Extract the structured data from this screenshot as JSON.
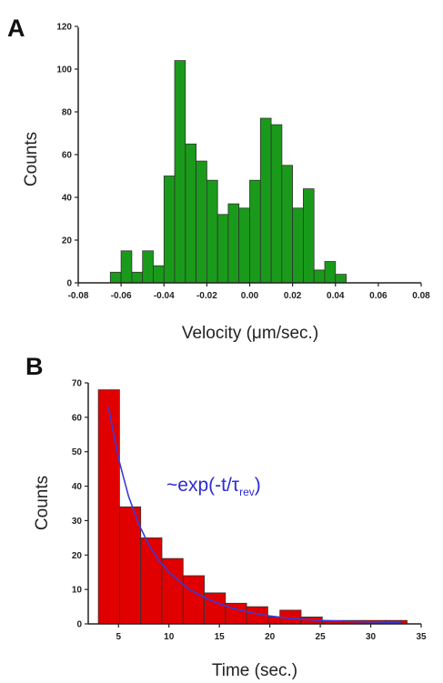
{
  "chart_data": [
    {
      "type": "bar",
      "panel_label": "A",
      "xlabel": "Velocity (μm/sec.)",
      "ylabel": "Counts",
      "xlim": [
        -0.08,
        0.08
      ],
      "ylim": [
        0,
        120
      ],
      "xticks": [
        "-0.08",
        "-0.06",
        "-0.04",
        "-0.02",
        "0.00",
        "0.02",
        "0.04",
        "0.06",
        "0.08"
      ],
      "yticks": [
        "0",
        "20",
        "40",
        "60",
        "80",
        "100",
        "120"
      ],
      "bin_width": 0.005,
      "bins": [
        {
          "x": -0.065,
          "y": 5
        },
        {
          "x": -0.06,
          "y": 15
        },
        {
          "x": -0.055,
          "y": 5
        },
        {
          "x": -0.05,
          "y": 15
        },
        {
          "x": -0.045,
          "y": 8
        },
        {
          "x": -0.04,
          "y": 50
        },
        {
          "x": -0.035,
          "y": 104
        },
        {
          "x": -0.03,
          "y": 65
        },
        {
          "x": -0.025,
          "y": 57
        },
        {
          "x": -0.02,
          "y": 48
        },
        {
          "x": -0.015,
          "y": 32
        },
        {
          "x": -0.01,
          "y": 37
        },
        {
          "x": -0.005,
          "y": 35
        },
        {
          "x": 0.0,
          "y": 48
        },
        {
          "x": 0.005,
          "y": 77
        },
        {
          "x": 0.01,
          "y": 74
        },
        {
          "x": 0.015,
          "y": 55
        },
        {
          "x": 0.02,
          "y": 35
        },
        {
          "x": 0.025,
          "y": 44
        },
        {
          "x": 0.03,
          "y": 6
        },
        {
          "x": 0.035,
          "y": 10
        },
        {
          "x": 0.04,
          "y": 4
        }
      ],
      "bar_color": "#1a9a1a",
      "grid": false
    },
    {
      "type": "bar",
      "panel_label": "B",
      "xlabel": "Time (sec.)",
      "ylabel": "Counts",
      "xlim": [
        2,
        35
      ],
      "ylim": [
        0,
        70
      ],
      "xticks": [
        "5",
        "10",
        "15",
        "20",
        "25",
        "30",
        "35"
      ],
      "yticks": [
        "0",
        "10",
        "20",
        "30",
        "40",
        "50",
        "60",
        "70"
      ],
      "bin_width": 2.1,
      "bins": [
        {
          "x": 3.0,
          "y": 68
        },
        {
          "x": 5.1,
          "y": 34
        },
        {
          "x": 7.2,
          "y": 25
        },
        {
          "x": 9.3,
          "y": 19
        },
        {
          "x": 11.4,
          "y": 14
        },
        {
          "x": 13.5,
          "y": 9
        },
        {
          "x": 15.6,
          "y": 6
        },
        {
          "x": 17.7,
          "y": 5
        },
        {
          "x": 19.8,
          "y": 2
        },
        {
          "x": 21.0,
          "y": 4
        },
        {
          "x": 23.1,
          "y": 2
        },
        {
          "x": 25.2,
          "y": 1
        },
        {
          "x": 27.3,
          "y": 1
        },
        {
          "x": 29.4,
          "y": 1
        },
        {
          "x": 31.5,
          "y": 1
        }
      ],
      "bar_color": "#e00000",
      "fit_curve": {
        "label_main": "~exp(-t/τ",
        "label_sub": "rev",
        "label_close": ")",
        "color": "#3a3ad8",
        "x": [
          4,
          5,
          6,
          7,
          8,
          9,
          10,
          12,
          14,
          16,
          18,
          20,
          22,
          25,
          28,
          31,
          33
        ],
        "y": [
          63,
          48,
          37,
          29,
          23,
          18.5,
          15,
          10,
          7,
          4.8,
          3.3,
          2.3,
          1.6,
          1.0,
          0.7,
          0.5,
          0.4
        ]
      },
      "grid": false
    }
  ]
}
